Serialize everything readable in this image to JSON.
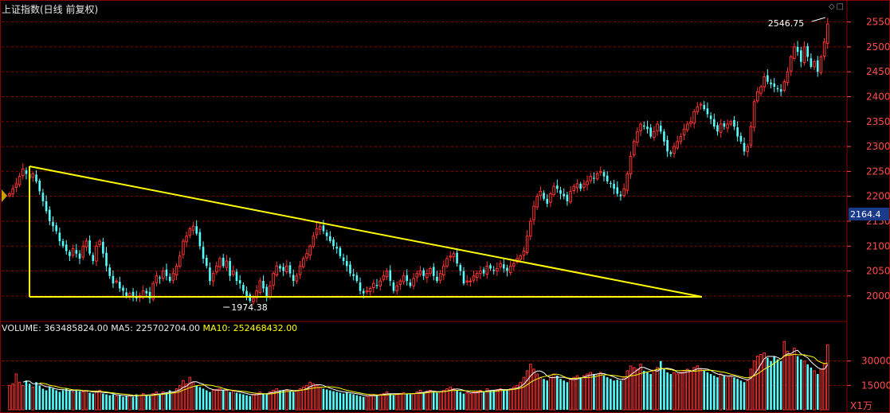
{
  "window": {
    "title": "上证指数(日线 前复权)",
    "icons": [
      "diamond-icon",
      "square-icon"
    ]
  },
  "colors": {
    "background": "#000000",
    "up": "#ff3232",
    "down": "#54ffff",
    "grid": "#8b0000",
    "trendline": "#ffff00",
    "ma5": "#ffffff",
    "ma10": "#ffff00",
    "axis_text": "#ff4b4b",
    "current_price_bg": "#1a3a8c"
  },
  "price_axis": {
    "ticks": [
      "2550",
      "2500",
      "2450",
      "2400",
      "2350",
      "2300",
      "2250",
      "2200",
      "2150",
      "2100",
      "2050",
      "2000"
    ],
    "current_value": "2164.4"
  },
  "annotations": {
    "high_label": "2546.75",
    "low_label": "1974.38"
  },
  "volume_legend": {
    "volume_label": "VOLUME: 363485824.00",
    "ma5_label": "MA5: 225702704.00",
    "ma10_label": "MA10: 252468432.00"
  },
  "volume_axis": {
    "ticks": [
      "30000",
      "15000"
    ],
    "unit": "X1万"
  },
  "chart_data": {
    "type": "candlestick",
    "series_name": "上证指数",
    "ylim": [
      1955,
      2575
    ],
    "volume_ylim": [
      0,
      45000
    ],
    "price_path": [
      2205,
      2215,
      2225,
      2240,
      2255,
      2245,
      2235,
      2245,
      2230,
      2210,
      2190,
      2170,
      2150,
      2140,
      2130,
      2110,
      2100,
      2090,
      2080,
      2095,
      2085,
      2075,
      2100,
      2110,
      2085,
      2070,
      2100,
      2110,
      2085,
      2060,
      2040,
      2025,
      2030,
      2015,
      2010,
      2000,
      2005,
      2000,
      1995,
      2000,
      2010,
      2005,
      1995,
      2025,
      2040,
      2035,
      2050,
      2040,
      2030,
      2045,
      2060,
      2080,
      2110,
      2120,
      2135,
      2140,
      2125,
      2100,
      2075,
      2060,
      2030,
      2045,
      2060,
      2075,
      2060,
      2070,
      2040,
      2050,
      2030,
      2025,
      2010,
      2000,
      1990,
      1995,
      2010,
      2030,
      2015,
      2000,
      2020,
      2045,
      2060,
      2055,
      2050,
      2060,
      2045,
      2030,
      2040,
      2060,
      2075,
      2085,
      2100,
      2120,
      2135,
      2140,
      2130,
      2120,
      2110,
      2100,
      2095,
      2080,
      2070,
      2060,
      2045,
      2040,
      2030,
      2010,
      2005,
      2010,
      2015,
      2025,
      2020,
      2030,
      2040,
      2050,
      2030,
      2010,
      2020,
      2030,
      2040,
      2030,
      2020,
      2035,
      2045,
      2050,
      2040,
      2045,
      2055,
      2040,
      2030,
      2045,
      2060,
      2075,
      2080,
      2085,
      2065,
      2050,
      2025,
      2030,
      2030,
      2040,
      2045,
      2050,
      2045,
      2060,
      2055,
      2050,
      2055,
      2065,
      2055,
      2050,
      2060,
      2065,
      2075,
      2080,
      2090,
      2120,
      2150,
      2180,
      2200,
      2210,
      2195,
      2185,
      2205,
      2220,
      2215,
      2205,
      2200,
      2190,
      2210,
      2220,
      2225,
      2215,
      2225,
      2230,
      2240,
      2235,
      2245,
      2250,
      2240,
      2230,
      2225,
      2215,
      2205,
      2200,
      2215,
      2245,
      2280,
      2310,
      2330,
      2345,
      2340,
      2335,
      2320,
      2330,
      2345,
      2330,
      2310,
      2290,
      2285,
      2300,
      2310,
      2320,
      2335,
      2345,
      2350,
      2370,
      2380,
      2385,
      2375,
      2365,
      2355,
      2340,
      2330,
      2345,
      2340,
      2345,
      2350,
      2340,
      2320,
      2310,
      2290,
      2300,
      2340,
      2390,
      2410,
      2420,
      2440,
      2430,
      2425,
      2420,
      2415,
      2410,
      2430,
      2450,
      2480,
      2500,
      2490,
      2470,
      2500,
      2480,
      2460,
      2470,
      2450,
      2480,
      2510,
      2546
    ],
    "volume_path": [
      15000,
      16000,
      22000,
      17000,
      15000,
      18000,
      16000,
      14000,
      17000,
      15000,
      13000,
      12000,
      14000,
      13000,
      12000,
      11000,
      12000,
      13000,
      12000,
      11000,
      12500,
      11500,
      11000,
      11800,
      10500,
      10000,
      11000,
      12000,
      10000,
      9500,
      9000,
      9500,
      8500,
      9000,
      8000,
      8500,
      9000,
      8000,
      9500,
      9000,
      10000,
      9000,
      8500,
      10000,
      11000,
      10000,
      11000,
      10500,
      12000,
      11000,
      13000,
      15000,
      18000,
      16000,
      20000,
      17000,
      15000,
      14000,
      13000,
      12000,
      11000,
      12000,
      12500,
      13000,
      12000,
      12000,
      11000,
      11500,
      10500,
      10000,
      9500,
      9000,
      8500,
      9500,
      10000,
      11000,
      10000,
      9500,
      11000,
      12000,
      13000,
      12000,
      12000,
      12500,
      11500,
      11000,
      12000,
      13000,
      14000,
      15000,
      17000,
      16000,
      15000,
      14000,
      13000,
      12500,
      12000,
      11500,
      11000,
      10500,
      10000,
      11000,
      10000,
      9500,
      9000,
      8500,
      8000,
      8500,
      9000,
      9500,
      9000,
      9500,
      10000,
      11000,
      10000,
      9000,
      9500,
      10000,
      10500,
      10000,
      9500,
      10000,
      11000,
      12000,
      11000,
      11500,
      12000,
      11000,
      10500,
      11000,
      12000,
      13000,
      14000,
      13000,
      12000,
      11000,
      10000,
      10500,
      10000,
      11000,
      11000,
      12000,
      11500,
      13000,
      12000,
      12000,
      12500,
      13000,
      12500,
      12000,
      13000,
      14000,
      15000,
      17000,
      20000,
      24000,
      28000,
      25000,
      22000,
      20000,
      19000,
      18000,
      20000,
      22000,
      21000,
      19000,
      18000,
      17000,
      19000,
      20000,
      21000,
      20000,
      21000,
      22000,
      23000,
      22000,
      22000,
      23000,
      21000,
      20000,
      19000,
      18000,
      18500,
      18000,
      20000,
      24000,
      27000,
      26000,
      25000,
      28000,
      24000,
      23000,
      22000,
      24000,
      26000,
      30000,
      25000,
      23000,
      22000,
      23000,
      22000,
      23000,
      24000,
      25000,
      24000,
      26000,
      27000,
      25000,
      24000,
      23000,
      22000,
      21000,
      20000,
      22000,
      21000,
      20000,
      21000,
      20000,
      19000,
      18000,
      17000,
      18000,
      25000,
      30000,
      33000,
      34000,
      35000,
      32000,
      30000,
      33000,
      31000,
      30000,
      42000,
      36000,
      34000,
      38000,
      33000,
      31000,
      30000,
      28000,
      26000,
      24000,
      22000,
      25000,
      28000,
      40000
    ]
  }
}
